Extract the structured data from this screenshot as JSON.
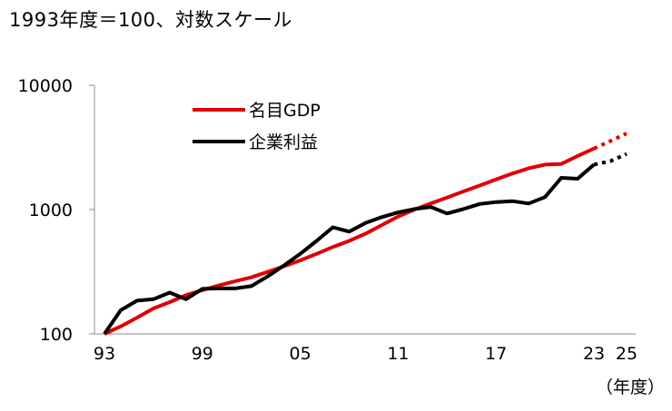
{
  "chart_data": {
    "type": "line",
    "title": "1993年度＝100、対数スケール",
    "xlabel": "（年度）",
    "ylabel": "",
    "yscale": "log",
    "ylim": [
      100,
      10000
    ],
    "yticks": [
      100,
      1000,
      10000
    ],
    "ytick_labels": [
      "100",
      "1000",
      "10000"
    ],
    "xlim": [
      1993,
      2025
    ],
    "xticks": [
      1993,
      1999,
      2005,
      2011,
      2017,
      2023,
      2025
    ],
    "xtick_labels": [
      "93",
      "99",
      "05",
      "11",
      "17",
      "23",
      "25"
    ],
    "legend_position": "top-left",
    "series": [
      {
        "name": "名目GDP",
        "color": "#e00000",
        "x": [
          1993,
          1994,
          1995,
          1996,
          1997,
          1998,
          1999,
          2000,
          2001,
          2002,
          2003,
          2004,
          2005,
          2006,
          2007,
          2008,
          2009,
          2010,
          2011,
          2012,
          2013,
          2014,
          2015,
          2016,
          2017,
          2018,
          2019,
          2020,
          2021,
          2022,
          2023
        ],
        "values": [
          100,
          115,
          135,
          160,
          180,
          205,
          225,
          245,
          265,
          285,
          315,
          350,
          390,
          440,
          500,
          560,
          640,
          750,
          880,
          1000,
          1120,
          1250,
          1400,
          1560,
          1750,
          1950,
          2150,
          2300,
          2330,
          2700,
          3100
        ],
        "projection": {
          "x": [
            2023,
            2024,
            2025
          ],
          "values": [
            3100,
            3550,
            4100
          ]
        }
      },
      {
        "name": "企業利益",
        "color": "#000000",
        "x": [
          1993,
          1994,
          1995,
          1996,
          1997,
          1998,
          1999,
          2000,
          2001,
          2002,
          2003,
          2004,
          2005,
          2006,
          2007,
          2008,
          2009,
          2010,
          2011,
          2012,
          2013,
          2014,
          2015,
          2016,
          2017,
          2018,
          2019,
          2020,
          2021,
          2022,
          2023
        ],
        "values": [
          100,
          155,
          185,
          190,
          215,
          190,
          230,
          232,
          232,
          242,
          290,
          355,
          440,
          560,
          720,
          665,
          780,
          870,
          950,
          1010,
          1050,
          930,
          1010,
          1110,
          1150,
          1170,
          1120,
          1260,
          1800,
          1770,
          2300
        ],
        "projection": {
          "x": [
            2023,
            2024,
            2025
          ],
          "values": [
            2300,
            2450,
            2800
          ]
        }
      }
    ]
  }
}
